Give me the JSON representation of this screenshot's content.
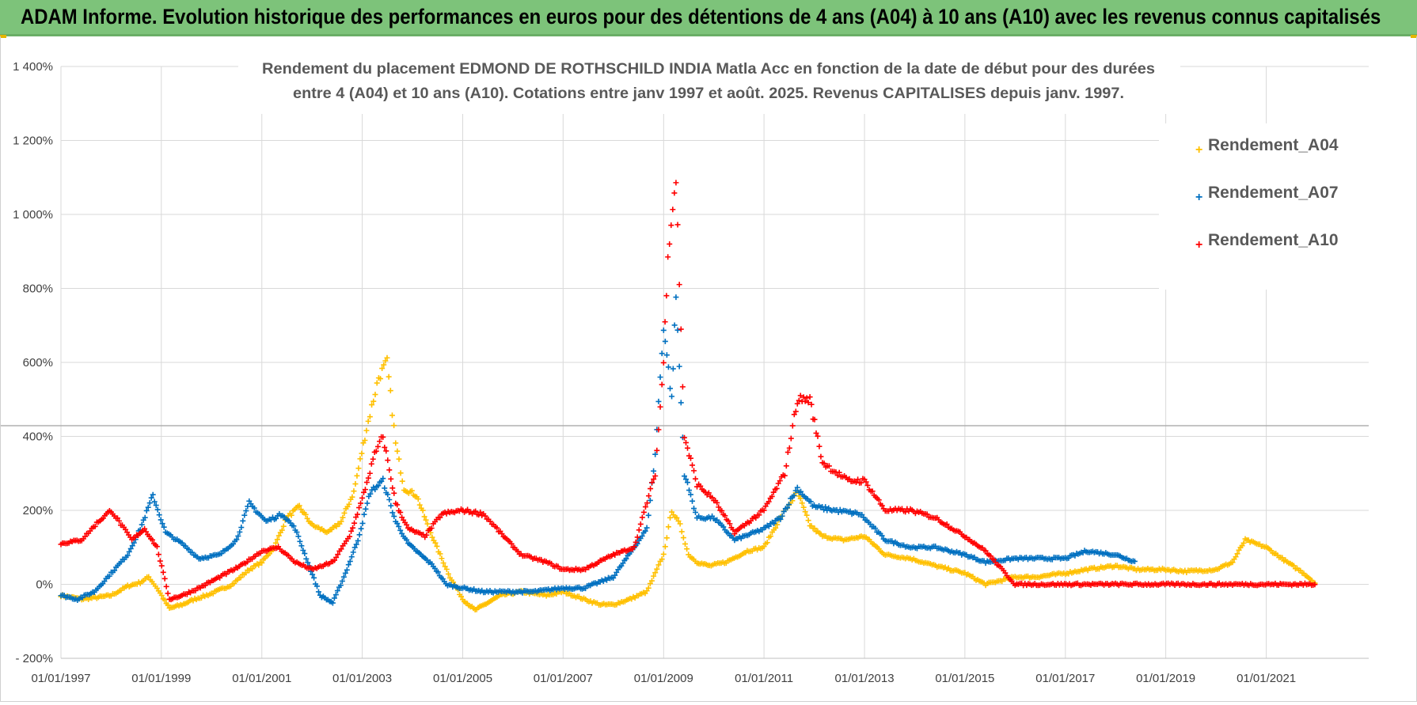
{
  "header": {
    "title": "ADAM Informe. Evolution historique des performances en euros pour des détentions de 4 ans (A04) à 10 ans (A10) avec les revenus connus capitalisés"
  },
  "colors": {
    "header_bg": "#7dc37a",
    "gridline": "#d9d9d9",
    "A04": "#ffc000",
    "A07": "#0070c0",
    "A10": "#ff0000"
  },
  "chart_data": {
    "type": "scatter",
    "marker": "plus",
    "title_line1": "Rendement du placement EDMOND DE ROTHSCHILD INDIA Matla Acc en fonction de la date de début pour des durées",
    "title_line2": "entre 4 (A04) et 10 ans (A10).  Cotations entre janv 1997 et août. 2025. Revenus CAPITALISES depuis janv. 1997.",
    "xlabel": "",
    "ylabel": "",
    "x_range": [
      "01/01/1997",
      "01/01/2022"
    ],
    "x_ticks": [
      "01/01/1997",
      "01/01/1999",
      "01/01/2001",
      "01/01/2003",
      "01/01/2005",
      "01/01/2007",
      "01/01/2009",
      "01/01/2011",
      "01/01/2013",
      "01/01/2015",
      "01/01/2017",
      "01/01/2019",
      "01/01/2021"
    ],
    "ylim": [
      -200,
      1400
    ],
    "y_ticks": [
      "- 200%",
      "0%",
      "200%",
      "400%",
      "600%",
      "800%",
      "1 000%",
      "1 200%",
      "1 400%"
    ],
    "y_tick_values": [
      -200,
      0,
      200,
      400,
      600,
      800,
      1000,
      1200,
      1400
    ],
    "grid": true,
    "legend_position": "top-right",
    "series": [
      {
        "name": "Rendement_A04",
        "color": "#ffc000",
        "points": [
          [
            "1997-01-01",
            -30
          ],
          [
            "1997-06-01",
            -40
          ],
          [
            "1997-10-01",
            -35
          ],
          [
            "1998-01-01",
            -30
          ],
          [
            "1998-05-01",
            -5
          ],
          [
            "1998-08-01",
            5
          ],
          [
            "1998-10-01",
            20
          ],
          [
            "1998-12-01",
            -10
          ],
          [
            "1999-03-01",
            -65
          ],
          [
            "1999-06-01",
            -55
          ],
          [
            "1999-09-01",
            -40
          ],
          [
            "2000-01-01",
            -25
          ],
          [
            "2000-06-01",
            0
          ],
          [
            "2000-10-01",
            40
          ],
          [
            "2001-01-01",
            60
          ],
          [
            "2001-04-01",
            100
          ],
          [
            "2001-07-01",
            180
          ],
          [
            "2001-10-01",
            210
          ],
          [
            "2002-01-01",
            160
          ],
          [
            "2002-05-01",
            140
          ],
          [
            "2002-08-01",
            170
          ],
          [
            "2002-11-01",
            250
          ],
          [
            "2003-02-01",
            420
          ],
          [
            "2003-05-01",
            560
          ],
          [
            "2003-07-01",
            600
          ],
          [
            "2003-09-01",
            380
          ],
          [
            "2003-11-01",
            260
          ],
          [
            "2004-02-01",
            240
          ],
          [
            "2004-05-01",
            150
          ],
          [
            "2004-08-01",
            70
          ],
          [
            "2004-10-01",
            20
          ],
          [
            "2005-01-01",
            -40
          ],
          [
            "2005-04-01",
            -70
          ],
          [
            "2005-07-01",
            -50
          ],
          [
            "2005-10-01",
            -30
          ],
          [
            "2006-03-01",
            -20
          ],
          [
            "2006-09-01",
            -30
          ],
          [
            "2007-01-01",
            -20
          ],
          [
            "2007-06-01",
            -40
          ],
          [
            "2007-10-01",
            -55
          ],
          [
            "2008-01-01",
            -55
          ],
          [
            "2008-05-01",
            -40
          ],
          [
            "2008-09-01",
            -20
          ],
          [
            "2008-11-01",
            30
          ],
          [
            "2009-01-01",
            80
          ],
          [
            "2009-03-01",
            200
          ],
          [
            "2009-05-01",
            160
          ],
          [
            "2009-07-01",
            80
          ],
          [
            "2009-09-01",
            60
          ],
          [
            "2009-12-01",
            50
          ],
          [
            "2010-04-01",
            60
          ],
          [
            "2010-09-01",
            90
          ],
          [
            "2011-01-01",
            100
          ],
          [
            "2011-05-01",
            180
          ],
          [
            "2011-09-01",
            250
          ],
          [
            "2011-12-01",
            160
          ],
          [
            "2012-03-01",
            130
          ],
          [
            "2012-08-01",
            120
          ],
          [
            "2013-01-01",
            130
          ],
          [
            "2013-06-01",
            80
          ],
          [
            "2013-12-01",
            70
          ],
          [
            "2014-06-01",
            50
          ],
          [
            "2015-01-01",
            30
          ],
          [
            "2015-06-01",
            0
          ],
          [
            "2016-01-01",
            20
          ],
          [
            "2016-06-01",
            20
          ],
          [
            "2017-01-01",
            30
          ],
          [
            "2017-06-01",
            40
          ],
          [
            "2018-01-01",
            50
          ],
          [
            "2018-06-01",
            40
          ],
          [
            "2019-01-01",
            40
          ],
          [
            "2019-06-01",
            35
          ],
          [
            "2020-01-01",
            40
          ],
          [
            "2020-05-01",
            60
          ],
          [
            "2020-08-01",
            120
          ],
          [
            "2021-01-01",
            100
          ],
          [
            "2021-06-01",
            60
          ],
          [
            "2021-10-01",
            30
          ],
          [
            "2022-01-01",
            0
          ]
        ]
      },
      {
        "name": "Rendement_A07",
        "color": "#0070c0",
        "points": [
          [
            "1997-01-01",
            -30
          ],
          [
            "1997-05-01",
            -40
          ],
          [
            "1997-09-01",
            -20
          ],
          [
            "1998-01-01",
            30
          ],
          [
            "1998-05-01",
            80
          ],
          [
            "1998-08-01",
            150
          ],
          [
            "1998-11-01",
            240
          ],
          [
            "1999-02-01",
            140
          ],
          [
            "1999-06-01",
            110
          ],
          [
            "1999-10-01",
            70
          ],
          [
            "2000-03-01",
            80
          ],
          [
            "2000-07-01",
            120
          ],
          [
            "2000-10-01",
            220
          ],
          [
            "2001-02-01",
            170
          ],
          [
            "2001-06-01",
            190
          ],
          [
            "2001-09-01",
            150
          ],
          [
            "2001-12-01",
            60
          ],
          [
            "2002-03-01",
            -30
          ],
          [
            "2002-06-01",
            -50
          ],
          [
            "2002-09-01",
            30
          ],
          [
            "2002-12-01",
            120
          ],
          [
            "2003-03-01",
            250
          ],
          [
            "2003-06-01",
            280
          ],
          [
            "2003-09-01",
            170
          ],
          [
            "2003-12-01",
            110
          ],
          [
            "2004-03-01",
            80
          ],
          [
            "2004-06-01",
            50
          ],
          [
            "2004-09-01",
            0
          ],
          [
            "2005-01-01",
            -10
          ],
          [
            "2005-06-01",
            -20
          ],
          [
            "2006-01-01",
            -20
          ],
          [
            "2006-06-01",
            -20
          ],
          [
            "2007-01-01",
            -10
          ],
          [
            "2007-06-01",
            -10
          ],
          [
            "2008-01-01",
            20
          ],
          [
            "2008-06-01",
            100
          ],
          [
            "2008-09-01",
            150
          ],
          [
            "2008-11-01",
            350
          ],
          [
            "2009-01-01",
            700
          ],
          [
            "2009-03-01",
            500
          ],
          [
            "2009-04-01",
            780
          ],
          [
            "2009-06-01",
            300
          ],
          [
            "2009-09-01",
            180
          ],
          [
            "2010-01-01",
            180
          ],
          [
            "2010-06-01",
            120
          ],
          [
            "2011-01-01",
            150
          ],
          [
            "2011-05-01",
            180
          ],
          [
            "2011-09-01",
            260
          ],
          [
            "2012-01-01",
            210
          ],
          [
            "2012-06-01",
            200
          ],
          [
            "2012-12-01",
            190
          ],
          [
            "2013-06-01",
            120
          ],
          [
            "2013-12-01",
            100
          ],
          [
            "2014-06-01",
            100
          ],
          [
            "2015-01-01",
            80
          ],
          [
            "2015-06-01",
            60
          ],
          [
            "2016-01-01",
            70
          ],
          [
            "2016-06-01",
            70
          ],
          [
            "2017-01-01",
            70
          ],
          [
            "2017-06-01",
            90
          ],
          [
            "2018-01-01",
            80
          ],
          [
            "2018-06-01",
            60
          ]
        ]
      },
      {
        "name": "Rendement_A10",
        "color": "#ff0000",
        "points": [
          [
            "1997-01-01",
            110
          ],
          [
            "1997-06-01",
            120
          ],
          [
            "1997-10-01",
            170
          ],
          [
            "1998-01-01",
            200
          ],
          [
            "1998-06-01",
            120
          ],
          [
            "1998-09-01",
            150
          ],
          [
            "1998-12-01",
            100
          ],
          [
            "1999-03-01",
            -40
          ],
          [
            "1999-06-01",
            -30
          ],
          [
            "1999-10-01",
            -10
          ],
          [
            "2000-03-01",
            20
          ],
          [
            "2000-08-01",
            50
          ],
          [
            "2001-01-01",
            90
          ],
          [
            "2001-05-01",
            100
          ],
          [
            "2001-09-01",
            60
          ],
          [
            "2002-01-01",
            40
          ],
          [
            "2002-06-01",
            60
          ],
          [
            "2002-10-01",
            130
          ],
          [
            "2003-01-01",
            230
          ],
          [
            "2003-04-01",
            350
          ],
          [
            "2003-06-01",
            400
          ],
          [
            "2003-09-01",
            220
          ],
          [
            "2003-12-01",
            150
          ],
          [
            "2004-04-01",
            130
          ],
          [
            "2004-08-01",
            190
          ],
          [
            "2005-01-01",
            200
          ],
          [
            "2005-06-01",
            190
          ],
          [
            "2005-10-01",
            140
          ],
          [
            "2006-03-01",
            80
          ],
          [
            "2006-09-01",
            60
          ],
          [
            "2007-01-01",
            40
          ],
          [
            "2007-06-01",
            40
          ],
          [
            "2008-01-01",
            80
          ],
          [
            "2008-06-01",
            100
          ],
          [
            "2008-11-01",
            300
          ],
          [
            "2009-01-01",
            600
          ],
          [
            "2009-02-01",
            900
          ],
          [
            "2009-04-01",
            1100
          ],
          [
            "2009-06-01",
            400
          ],
          [
            "2009-09-01",
            270
          ],
          [
            "2010-01-01",
            230
          ],
          [
            "2010-06-01",
            140
          ],
          [
            "2011-01-01",
            200
          ],
          [
            "2011-06-01",
            300
          ],
          [
            "2011-09-01",
            500
          ],
          [
            "2011-12-01",
            500
          ],
          [
            "2012-03-01",
            330
          ],
          [
            "2012-09-01",
            280
          ],
          [
            "2013-01-01",
            280
          ],
          [
            "2013-06-01",
            200
          ],
          [
            "2013-12-01",
            200
          ],
          [
            "2014-06-01",
            180
          ],
          [
            "2015-01-01",
            130
          ],
          [
            "2015-06-01",
            90
          ],
          [
            "2016-01-01",
            0
          ],
          [
            "2022-01-01",
            0
          ]
        ]
      }
    ]
  },
  "legend": {
    "items": [
      {
        "label": "Rendement_A04",
        "color": "#ffc000"
      },
      {
        "label": "Rendement_A07",
        "color": "#0070c0"
      },
      {
        "label": "Rendement_A10",
        "color": "#ff0000"
      }
    ]
  }
}
